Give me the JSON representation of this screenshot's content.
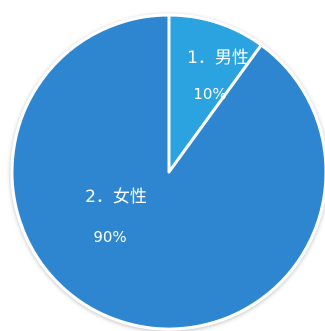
{
  "chart_data": {
    "type": "pie",
    "categories": [
      "1．男性",
      "2．女性"
    ],
    "values": [
      10,
      90
    ],
    "data_labels": [
      "10%",
      "90%"
    ],
    "colors": [
      "#2aa3e0",
      "#2e86d1"
    ],
    "slice_border_color": "#ffffff",
    "label_color": "#ffffff",
    "start_angle": "top",
    "direction": "clockwise",
    "legend": "none"
  }
}
